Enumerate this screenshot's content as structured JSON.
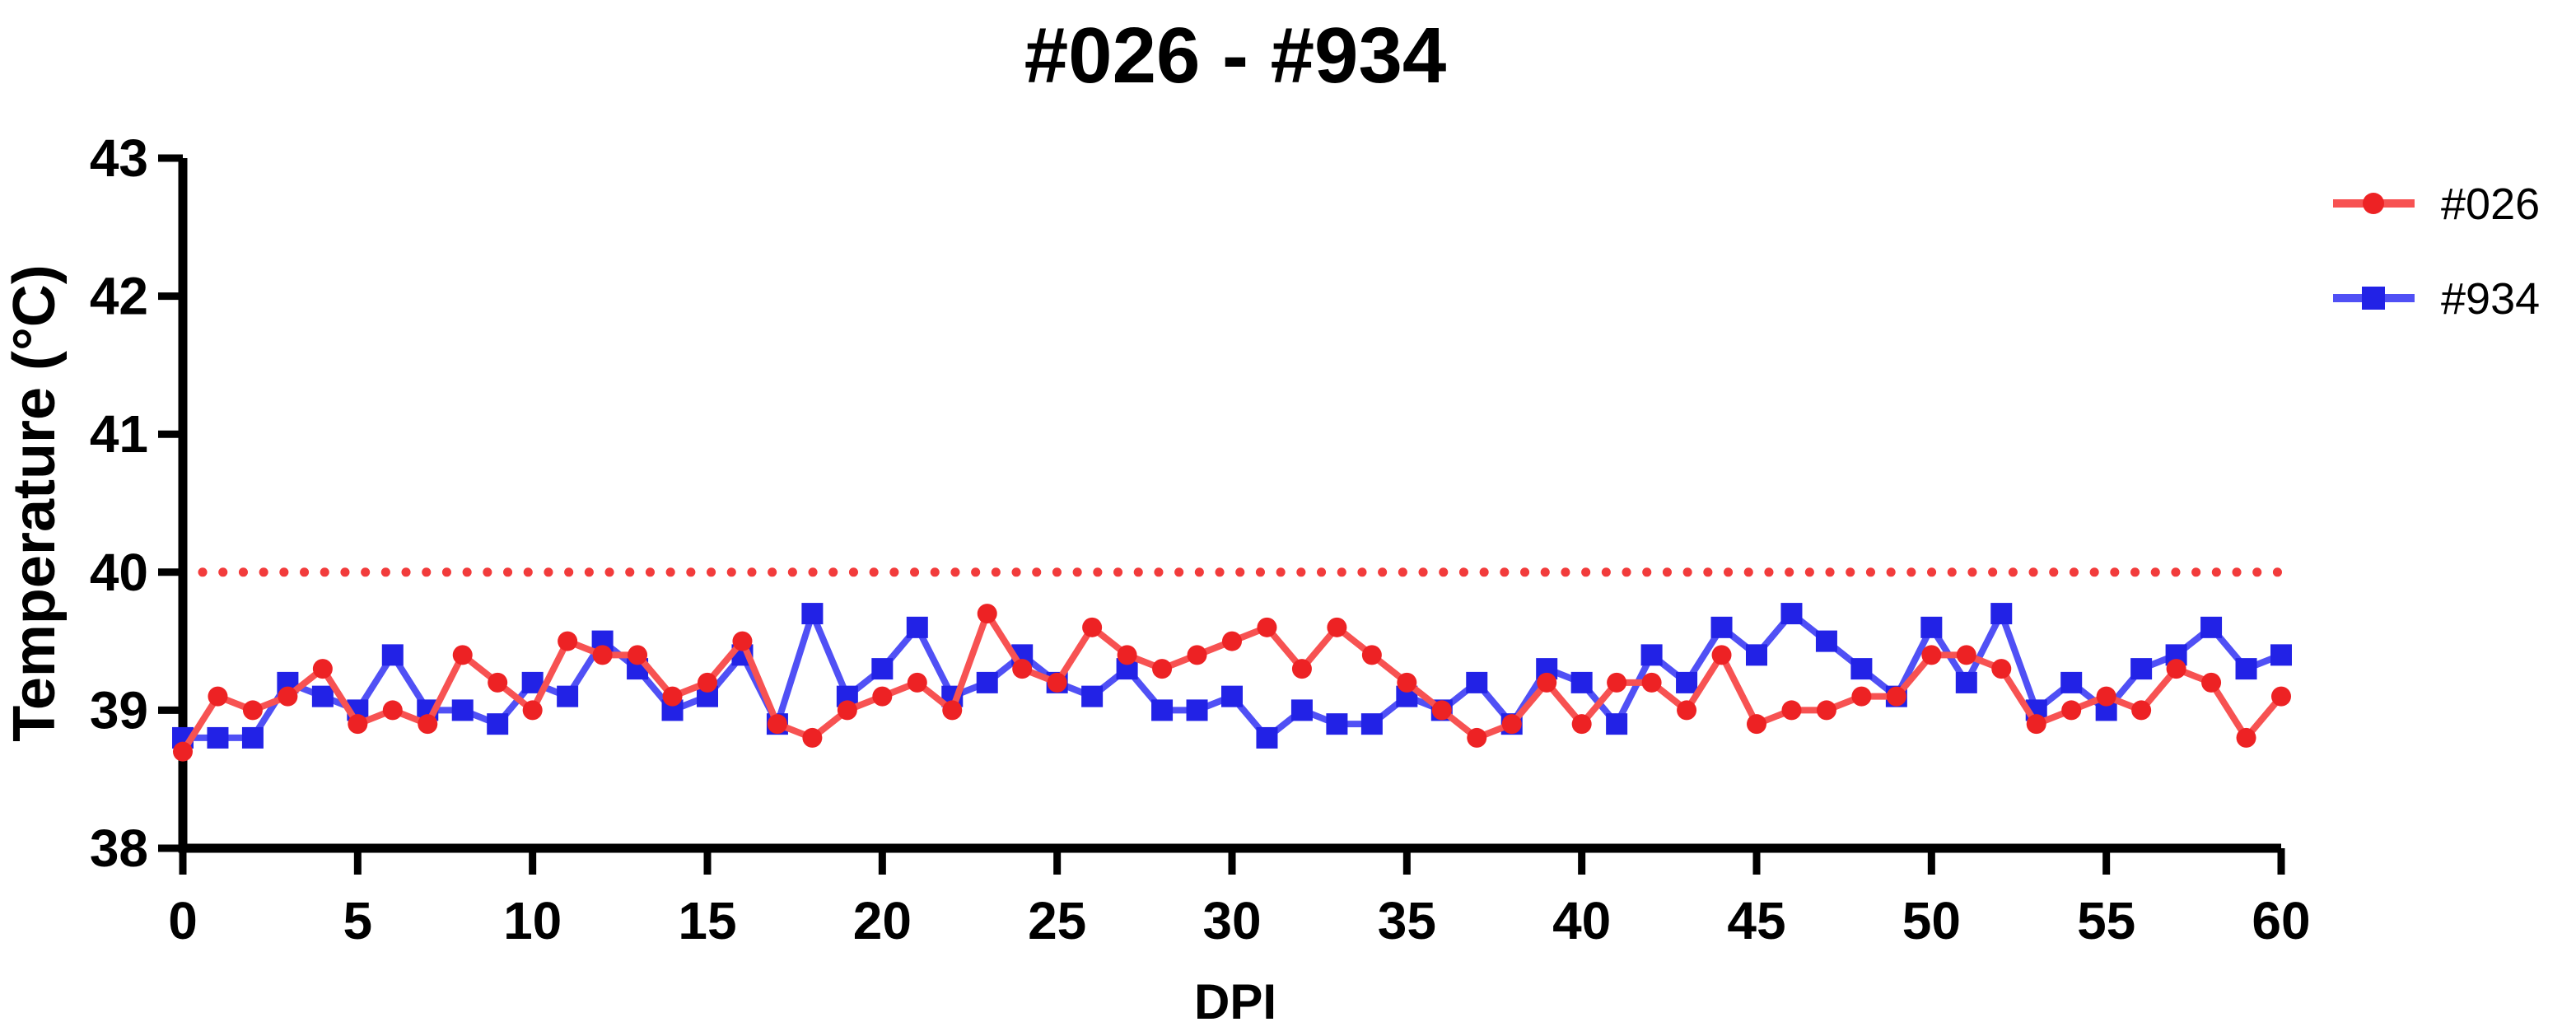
{
  "page": {
    "background": "#FFFFFF"
  },
  "chart_data": {
    "type": "line",
    "title": "#026 - #934",
    "xlabel": "DPI",
    "ylabel": "Temperature (°C)",
    "xlim": [
      0,
      60
    ],
    "ylim": [
      38,
      43
    ],
    "xticks": [
      0,
      5,
      10,
      15,
      20,
      25,
      30,
      35,
      40,
      45,
      50,
      55,
      60
    ],
    "yticks": [
      38,
      39,
      40,
      41,
      42,
      43
    ],
    "grid": false,
    "legend_position": "right",
    "axis_color": "#000000",
    "x": [
      0,
      1,
      2,
      3,
      4,
      5,
      6,
      7,
      8,
      9,
      10,
      11,
      12,
      13,
      14,
      15,
      16,
      17,
      18,
      19,
      20,
      21,
      22,
      23,
      24,
      25,
      26,
      27,
      28,
      29,
      30,
      31,
      32,
      33,
      34,
      35,
      36,
      37,
      38,
      39,
      40,
      41,
      42,
      43,
      44,
      45,
      46,
      47,
      48,
      49,
      50,
      51,
      52,
      53,
      54,
      55,
      56,
      57,
      58,
      59,
      60
    ],
    "series": [
      {
        "name": "#026",
        "marker": "circle",
        "marker_color": "#ED2224",
        "line_color": "#F75252",
        "values": [
          38.7,
          39.1,
          39.0,
          39.1,
          39.3,
          38.9,
          39.0,
          38.9,
          39.4,
          39.2,
          39.0,
          39.5,
          39.4,
          39.4,
          39.1,
          39.2,
          39.5,
          38.9,
          38.8,
          39.0,
          39.1,
          39.2,
          39.0,
          39.7,
          39.3,
          39.2,
          39.6,
          39.4,
          39.3,
          39.4,
          39.5,
          39.6,
          39.3,
          39.6,
          39.4,
          39.2,
          39.0,
          38.8,
          38.9,
          39.2,
          38.9,
          39.2,
          39.2,
          39.0,
          39.4,
          38.9,
          39.0,
          39.0,
          39.1,
          39.1,
          39.4,
          39.4,
          39.3,
          38.9,
          39.0,
          39.1,
          39.0,
          39.3,
          39.2,
          38.8,
          39.1
        ]
      },
      {
        "name": "#934",
        "marker": "square",
        "marker_color": "#2222E6",
        "line_color": "#5050F5",
        "values": [
          38.8,
          38.8,
          38.8,
          39.2,
          39.1,
          39.0,
          39.4,
          39.0,
          39.0,
          38.9,
          39.2,
          39.1,
          39.5,
          39.3,
          39.0,
          39.1,
          39.4,
          38.9,
          39.7,
          39.1,
          39.3,
          39.6,
          39.1,
          39.2,
          39.4,
          39.2,
          39.1,
          39.3,
          39.0,
          39.0,
          39.1,
          38.8,
          39.0,
          38.9,
          38.9,
          39.1,
          39.0,
          39.2,
          38.9,
          39.3,
          39.2,
          38.9,
          39.4,
          39.2,
          39.6,
          39.4,
          39.7,
          39.5,
          39.3,
          39.1,
          39.6,
          39.2,
          39.7,
          39.0,
          39.2,
          39.0,
          39.3,
          39.4,
          39.6,
          39.3,
          39.4
        ]
      }
    ],
    "reference_line": {
      "y": 40,
      "style": "dotted",
      "color": "#F23B3B"
    }
  }
}
